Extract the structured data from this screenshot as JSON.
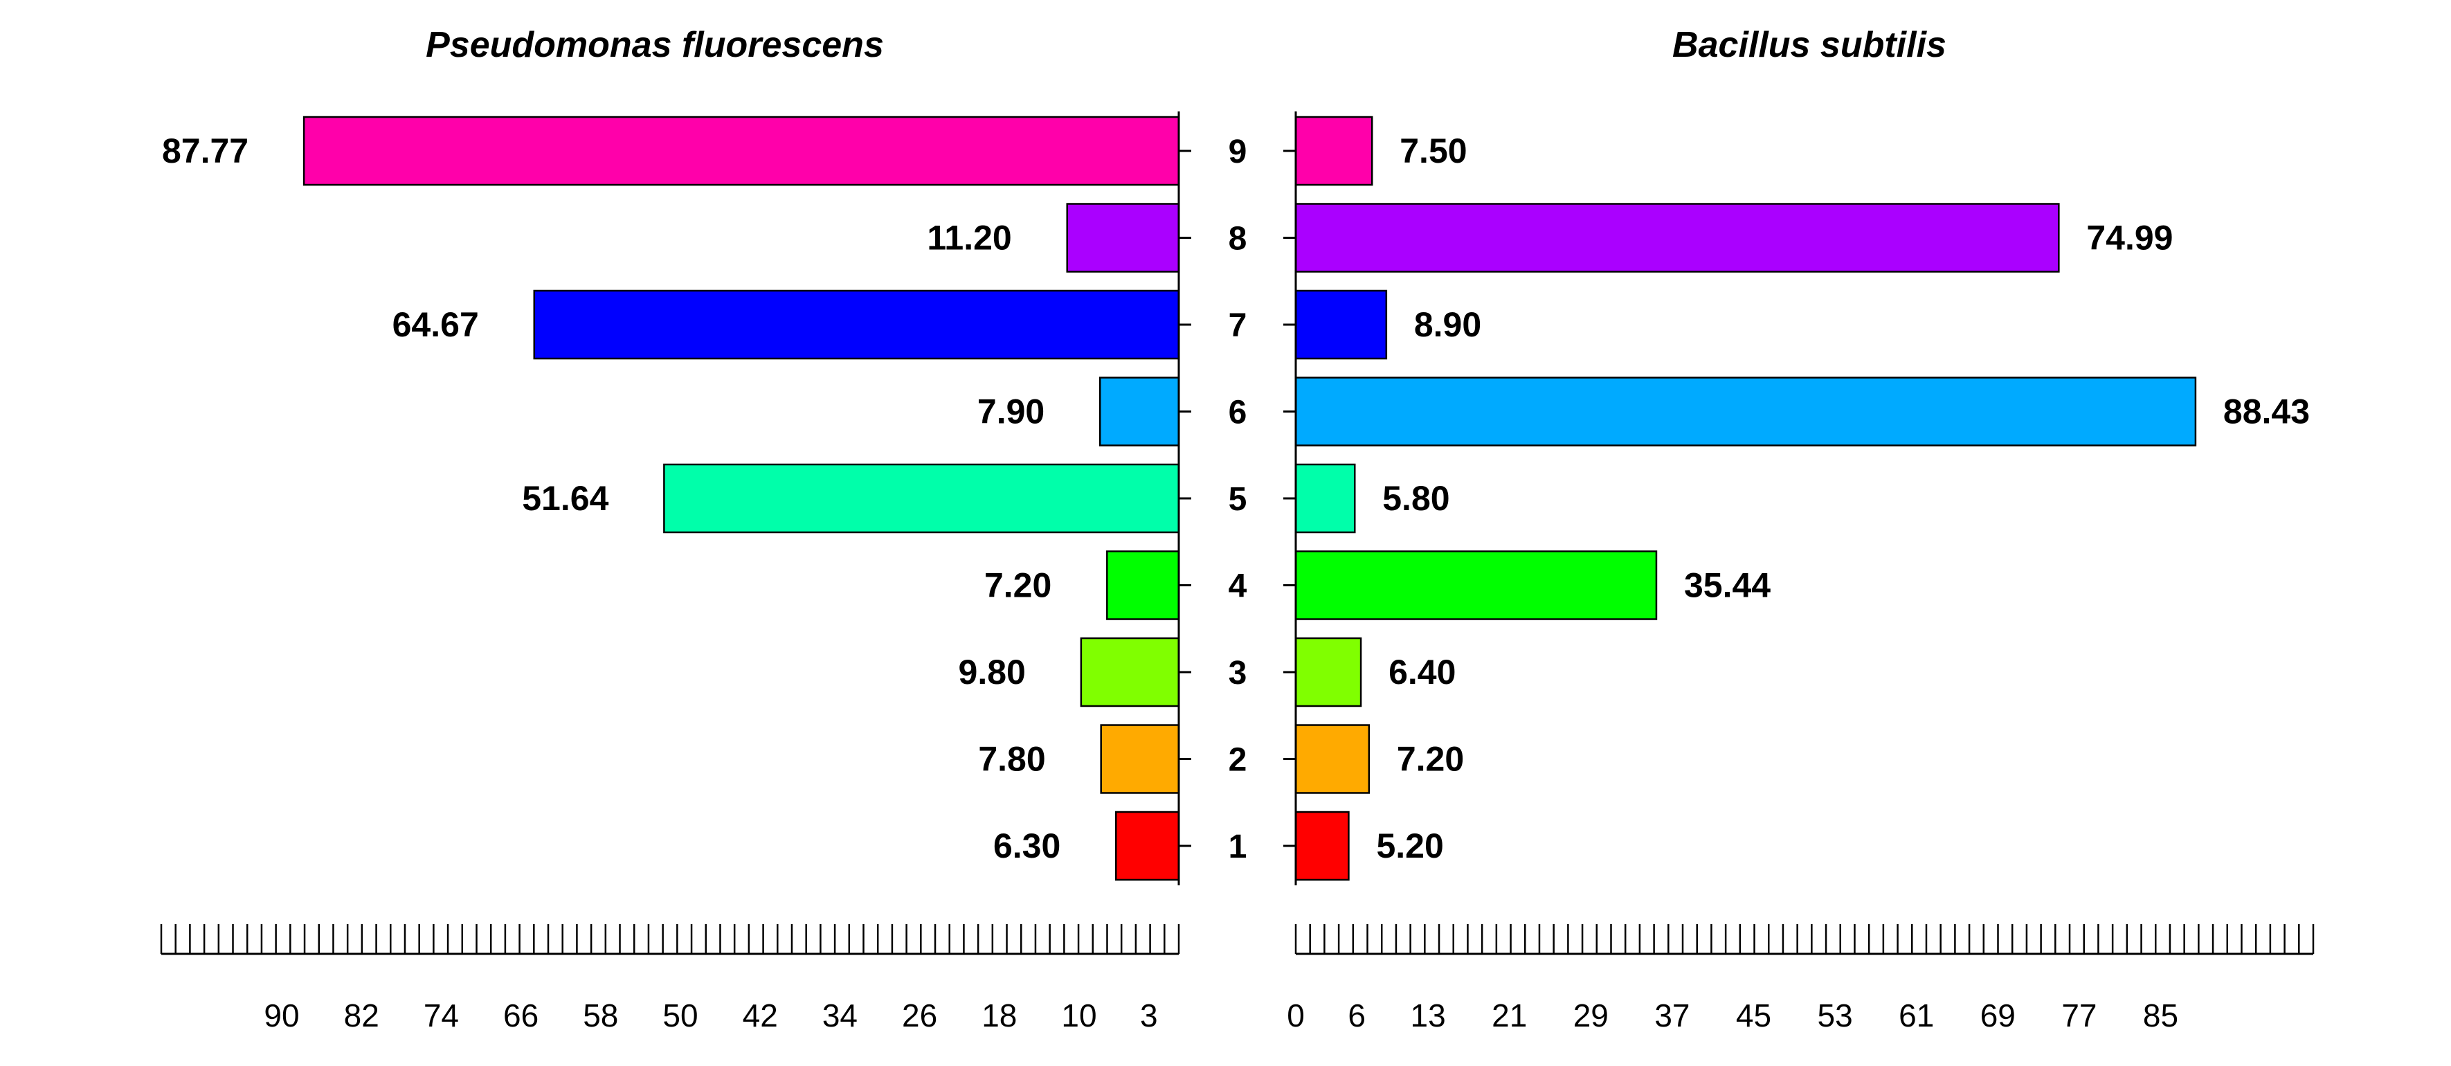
{
  "chart_data": {
    "type": "bar",
    "orientation": "horizontal",
    "categories": [
      "1",
      "2",
      "3",
      "4",
      "5",
      "6",
      "7",
      "8",
      "9"
    ],
    "colors": [
      "#FF0000",
      "#FFAA00",
      "#80FF00",
      "#00FF00",
      "#00FFAA",
      "#00AAFF",
      "#0000FF",
      "#AA00FF",
      "#FF00AA"
    ],
    "left": {
      "title": "Pseudomonas fluorescens",
      "values": [
        6.3,
        7.8,
        9.8,
        7.2,
        51.64,
        7.9,
        64.67,
        11.2,
        87.77
      ],
      "labels": [
        "6.30",
        "7.80",
        "9.80",
        "7.20",
        "51.64",
        "7.90",
        "64.67",
        "11.20",
        "87.77"
      ],
      "xlim": [
        90,
        0
      ],
      "ticks": [
        "90",
        "82",
        "74",
        "66",
        "58",
        "50",
        "42",
        "34",
        "26",
        "18",
        "10",
        "3"
      ],
      "tick_values": [
        90,
        82,
        74,
        66,
        58,
        50,
        42,
        34,
        26,
        18,
        10,
        3
      ]
    },
    "right": {
      "title": "Bacillus subtilis",
      "values": [
        5.2,
        7.2,
        6.4,
        35.44,
        5.8,
        88.43,
        8.9,
        74.99,
        7.5
      ],
      "labels": [
        "5.20",
        "7.20",
        "6.40",
        "35.44",
        "5.80",
        "88.43",
        "8.90",
        "74.99",
        "7.50"
      ],
      "xlim": [
        0,
        90
      ],
      "ticks": [
        "0",
        "6",
        "13",
        "21",
        "29",
        "37",
        "45",
        "53",
        "61",
        "69",
        "77",
        "85"
      ],
      "tick_values": [
        0,
        6,
        13,
        21,
        29,
        37,
        45,
        53,
        61,
        69,
        77,
        85
      ]
    }
  }
}
